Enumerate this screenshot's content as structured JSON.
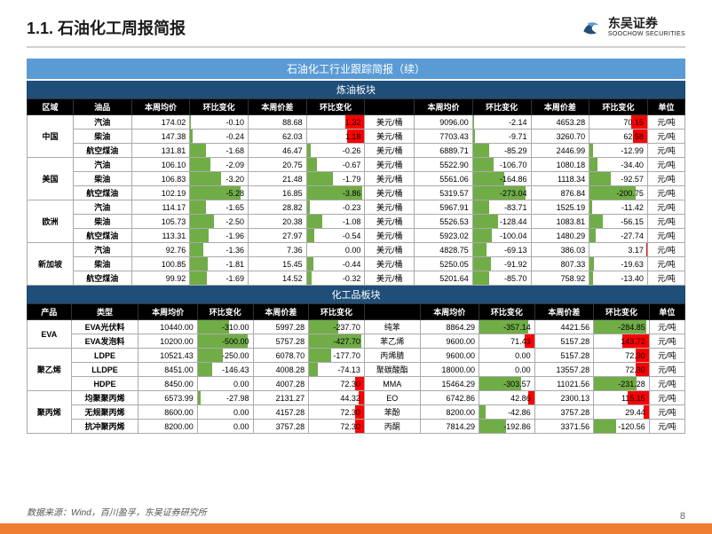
{
  "header": {
    "title": "1.1. 石油化工周报简报"
  },
  "logo": {
    "cn": "东吴证券",
    "en": "SOOCHOW SECURITIES"
  },
  "section_title": "石油化工行业跟踪简报（续）",
  "sub1": "炼油板块",
  "sub2": "化工品板块",
  "th1": [
    "区域",
    "油品",
    "本周均价",
    "环比变化",
    "本周价差",
    "环比变化",
    "",
    "本周均价",
    "环比变化",
    "本周价差",
    "环比变化",
    "单位"
  ],
  "th2": [
    "产品",
    "类型",
    "本周均价",
    "环比变化",
    "本周价差",
    "环比变化",
    "",
    "本周均价",
    "环比变化",
    "本周价差",
    "环比变化",
    "单位"
  ],
  "refine": [
    {
      "region": "中国",
      "rows": [
        [
          "汽油",
          "174.02",
          "-0.10",
          "88.68",
          "1.32",
          "美元/桶",
          "9096.00",
          "-2.14",
          "4653.28",
          "70.15",
          "元/吨"
        ],
        [
          "柴油",
          "147.38",
          "-0.24",
          "62.03",
          "1.18",
          "美元/桶",
          "7703.43",
          "-9.71",
          "3260.70",
          "62.58",
          "元/吨"
        ],
        [
          "航空煤油",
          "131.81",
          "-1.68",
          "46.47",
          "-0.26",
          "美元/桶",
          "6889.71",
          "-85.29",
          "2446.99",
          "-12.99",
          "元/吨"
        ]
      ]
    },
    {
      "region": "美国",
      "rows": [
        [
          "汽油",
          "106.10",
          "-2.09",
          "20.75",
          "-0.67",
          "美元/桶",
          "5522.90",
          "-106.70",
          "1080.18",
          "-34.40",
          "元/吨"
        ],
        [
          "柴油",
          "106.83",
          "-3.20",
          "21.48",
          "-1.79",
          "美元/桶",
          "5561.06",
          "-164.86",
          "1118.34",
          "-92.57",
          "元/吨"
        ],
        [
          "航空煤油",
          "102.19",
          "-5.28",
          "16.85",
          "-3.86",
          "美元/桶",
          "5319.57",
          "-273.04",
          "876.84",
          "-200.75",
          "元/吨"
        ]
      ]
    },
    {
      "region": "欧洲",
      "rows": [
        [
          "汽油",
          "114.17",
          "-1.65",
          "28.82",
          "-0.23",
          "美元/桶",
          "5967.91",
          "-83.71",
          "1525.19",
          "-11.42",
          "元/吨"
        ],
        [
          "柴油",
          "105.73",
          "-2.50",
          "20.38",
          "-1.08",
          "美元/桶",
          "5526.53",
          "-128.44",
          "1083.81",
          "-56.15",
          "元/吨"
        ],
        [
          "航空煤油",
          "113.31",
          "-1.96",
          "27.97",
          "-0.54",
          "美元/桶",
          "5923.02",
          "-100.04",
          "1480.29",
          "-27.74",
          "元/吨"
        ]
      ]
    },
    {
      "region": "新加坡",
      "rows": [
        [
          "汽油",
          "92.76",
          "-1.36",
          "7.36",
          "0.00",
          "美元/桶",
          "4828.75",
          "-69.13",
          "386.03",
          "3.17",
          "元/吨"
        ],
        [
          "柴油",
          "100.85",
          "-1.81",
          "15.45",
          "-0.44",
          "美元/桶",
          "5250.05",
          "-91.92",
          "807.33",
          "-19.63",
          "元/吨"
        ],
        [
          "航空煤油",
          "99.92",
          "-1.69",
          "14.52",
          "-0.32",
          "美元/桶",
          "5201.64",
          "-85.70",
          "758.92",
          "-13.40",
          "元/吨"
        ]
      ]
    }
  ],
  "chem": [
    {
      "region": "EVA",
      "rows": [
        [
          "EVA光伏料",
          "10440.00",
          "-310.00",
          "5997.28",
          "-237.70",
          "纯苯",
          "8864.29",
          "-357.14",
          "4421.56",
          "-284.85",
          "元/吨"
        ],
        [
          "EVA发泡料",
          "10200.00",
          "-500.00",
          "5757.28",
          "-427.70",
          "苯乙烯",
          "9600.00",
          "71.43",
          "5157.28",
          "143.72",
          "元/吨"
        ]
      ]
    },
    {
      "region": "聚乙烯",
      "rows": [
        [
          "LDPE",
          "10521.43",
          "-250.00",
          "6078.70",
          "-177.70",
          "丙烯腈",
          "9600.00",
          "0.00",
          "5157.28",
          "72.30",
          "元/吨"
        ],
        [
          "LLDPE",
          "8451.00",
          "-146.43",
          "4008.28",
          "-74.13",
          "聚碳酸酯",
          "18000.00",
          "0.00",
          "13557.28",
          "72.30",
          "元/吨"
        ],
        [
          "HDPE",
          "8450.00",
          "0.00",
          "4007.28",
          "72.30",
          "MMA",
          "15464.29",
          "-303.57",
          "11021.56",
          "-231.28",
          "元/吨"
        ]
      ]
    },
    {
      "region": "聚丙烯",
      "rows": [
        [
          "均聚聚丙烯",
          "6573.99",
          "-27.98",
          "2131.27",
          "44.32",
          "EO",
          "6742.86",
          "42.86",
          "2300.13",
          "115.15",
          "元/吨"
        ],
        [
          "无规聚丙烯",
          "8600.00",
          "0.00",
          "4157.28",
          "72.30",
          "苯酚",
          "8200.00",
          "-42.86",
          "3757.28",
          "29.44",
          "元/吨"
        ],
        [
          "抗冲聚丙烯",
          "8200.00",
          "0.00",
          "3757.28",
          "72.30",
          "丙酮",
          "7814.29",
          "-192.86",
          "3371.56",
          "-120.56",
          "元/吨"
        ]
      ]
    }
  ],
  "bars": {
    "refine_c3_max": 6,
    "refine_c5_max": 4,
    "refine_c8_max": 300,
    "refine_c10_max": 250,
    "chem_c3_max": 550,
    "chem_c5_max": 450,
    "chem_c8_max": 400,
    "chem_c10_max": 300
  },
  "source": "数据来源：Wind，百川盈孚，东吴证券研究所",
  "pagenum": "8"
}
